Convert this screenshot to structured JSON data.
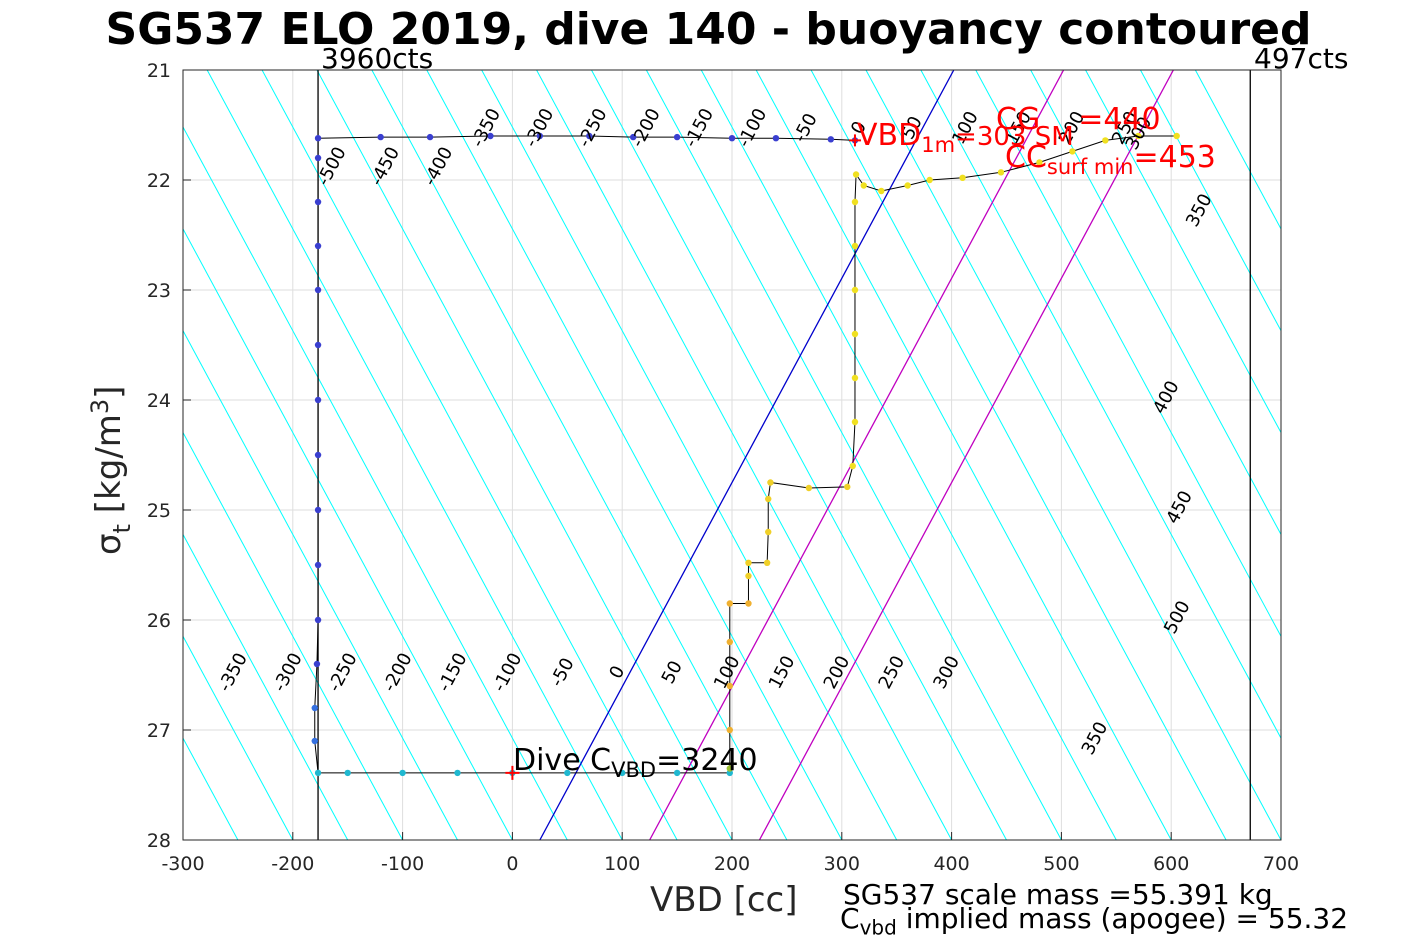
{
  "chart_data": {
    "type": "scatter",
    "title": "SG537 ELO 2019, dive 140 - buoyancy contoured",
    "xlabel": "VBD [cc]",
    "ylabel": "σ_t [kg/m^3]",
    "xlim": [
      -300,
      700
    ],
    "ylim": [
      28,
      21
    ],
    "xticks": [
      -300,
      -200,
      -100,
      0,
      100,
      200,
      300,
      400,
      500,
      600,
      700
    ],
    "yticks": [
      21,
      22,
      23,
      24,
      25,
      26,
      27,
      28
    ],
    "grid": true,
    "counts_left": "3960cts",
    "counts_right": "497cts",
    "vbd_min_line": -177,
    "vbd_max_line": 672,
    "buoyancy_contours": {
      "slope_cc_per_unit_sigma": 54,
      "levels_low": [
        -350,
        -300,
        -250,
        -200,
        -150,
        -100,
        -50,
        0,
        50,
        100,
        150,
        200,
        250,
        300,
        350
      ],
      "labels_low": [
        "-350",
        "-300",
        "-250",
        "-200",
        "-150",
        "-100",
        "-50",
        "0",
        "50",
        "100",
        "150",
        "200",
        "250",
        "300",
        "350"
      ],
      "levels_high": [
        -500,
        -450,
        -400,
        -350,
        -300,
        -250,
        -200,
        -150,
        -100,
        -50,
        0,
        50,
        100,
        150,
        200,
        250
      ],
      "labels_high": [
        "-500",
        "-450",
        "-400",
        "-350",
        "-300",
        "-250",
        "-200",
        "-150",
        "-100",
        "-50",
        "0",
        "50",
        "100",
        "150",
        "200",
        "250"
      ],
      "levels_right": [
        300,
        350,
        400,
        450,
        500
      ],
      "labels_right": [
        "300",
        "350",
        "400",
        "450",
        "500"
      ]
    },
    "reference_lines": [
      {
        "name": "dive C_VBD neutral",
        "color": "#0000cc",
        "x_at_sigma_28": 25,
        "x_at_sigma_21": 402
      },
      {
        "name": "CG",
        "color": "#c000c0",
        "x_at_sigma_28": 125,
        "x_at_sigma_21": 502
      },
      {
        "name": "CC surf min",
        "color": "#c000c0",
        "x_at_sigma_28": 225,
        "x_at_sigma_21": 602
      }
    ],
    "dive_profile": [
      [
        -120,
        21.61
      ],
      [
        -75,
        21.61
      ],
      [
        -20,
        21.6
      ],
      [
        25,
        21.6
      ],
      [
        70,
        21.6
      ],
      [
        110,
        21.61
      ],
      [
        150,
        21.61
      ],
      [
        200,
        21.62
      ],
      [
        240,
        21.62
      ],
      [
        290,
        21.63
      ],
      [
        312,
        21.64
      ],
      [
        -177,
        21.62
      ],
      [
        -177,
        21.8
      ],
      [
        -177,
        22.2
      ],
      [
        -177,
        22.6
      ],
      [
        -177,
        23.0
      ],
      [
        -177,
        23.5
      ],
      [
        -177,
        24.0
      ],
      [
        -177,
        24.5
      ],
      [
        -177,
        25.0
      ],
      [
        -177,
        25.5
      ],
      [
        -177,
        26.0
      ],
      [
        -178,
        26.4
      ],
      [
        -180,
        26.8
      ],
      [
        -180,
        27.1
      ],
      [
        -177,
        27.39
      ],
      [
        -150,
        27.39
      ],
      [
        -100,
        27.39
      ],
      [
        -50,
        27.39
      ],
      [
        0,
        27.39
      ],
      [
        50,
        27.39
      ],
      [
        100,
        27.39
      ],
      [
        150,
        27.39
      ],
      [
        198,
        27.39
      ]
    ],
    "climb_profile": [
      [
        198,
        27.35
      ],
      [
        198,
        27.0
      ],
      [
        198,
        26.6
      ],
      [
        198,
        26.2
      ],
      [
        198,
        25.85
      ],
      [
        215,
        25.85
      ],
      [
        215,
        25.6
      ],
      [
        215,
        25.48
      ],
      [
        232,
        25.48
      ],
      [
        233,
        25.2
      ],
      [
        233,
        24.9
      ],
      [
        235,
        24.75
      ],
      [
        270,
        24.8
      ],
      [
        305,
        24.79
      ],
      [
        310,
        24.6
      ],
      [
        312,
        24.2
      ],
      [
        312,
        23.8
      ],
      [
        312,
        23.4
      ],
      [
        312,
        23.0
      ],
      [
        312,
        22.6
      ],
      [
        312,
        22.2
      ],
      [
        313,
        21.95
      ],
      [
        320,
        22.05
      ],
      [
        336,
        22.1
      ],
      [
        360,
        22.05
      ],
      [
        380,
        22.0
      ],
      [
        410,
        21.98
      ],
      [
        445,
        21.93
      ],
      [
        480,
        21.84
      ],
      [
        510,
        21.74
      ],
      [
        540,
        21.64
      ],
      [
        570,
        21.6
      ],
      [
        605,
        21.6
      ]
    ],
    "neutral_marker": {
      "x": 0,
      "y": 27.39
    },
    "annotations": {
      "vbd1m": {
        "main": "VBD",
        "sub": "1m",
        "tail": "=303 SM"
      },
      "cg": {
        "main": "CG",
        "tail": "=440"
      },
      "ccsurf": {
        "main": "CC",
        "sub": "surf min",
        "tail": "=453"
      },
      "divec": {
        "main": "Dive C",
        "sub": "VBD",
        "tail": "=3240"
      }
    }
  },
  "footer": {
    "scale_mass": "SG537 scale mass =55.391 kg",
    "implied_main": "C",
    "implied_sub": "vbd",
    "implied_tail": " implied mass (apogee) = 55.32"
  },
  "colors": {
    "contour": "#00ffff",
    "neutral_line": "#0000cc",
    "cg_line": "#c000c0",
    "dive_points": "#3a3fd0",
    "dive_bottom": "#1fb8d0",
    "climb_points": "#f0e020",
    "annotation": "#ff0000"
  }
}
